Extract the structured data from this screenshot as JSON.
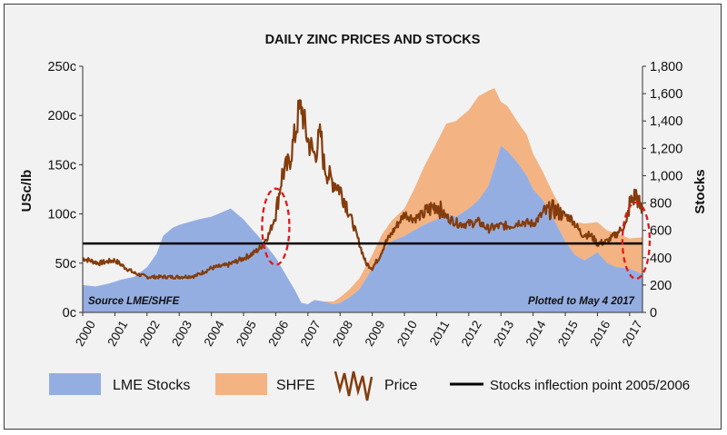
{
  "chart_data": {
    "type": "area",
    "title": "DAILY ZINC PRICES AND STOCKS",
    "ylabel": "USc/lb",
    "y2label": "Stocks",
    "x_ticks": [
      "2000",
      "2001",
      "2002",
      "2003",
      "2004",
      "2005",
      "2006",
      "2007",
      "2008",
      "2009",
      "2010",
      "2011",
      "2012",
      "2013",
      "2014",
      "2015",
      "2016",
      "2017"
    ],
    "y_ticks": [
      "0c",
      "50c",
      "100c",
      "150c",
      "200c",
      "250c"
    ],
    "y2_ticks": [
      "0",
      "200",
      "400",
      "600",
      "800",
      "1,000",
      "1,200",
      "1,400",
      "1,600",
      "1,800"
    ],
    "xlim": [
      2000,
      2017.4
    ],
    "ylim": [
      0,
      250
    ],
    "y2lim": [
      0,
      1800
    ],
    "grid": false,
    "legend_position": "bottom",
    "annotations": {
      "source": "Source LME/SHFE",
      "plotted": "Plotted to May 4 2017"
    },
    "inflection_line": {
      "name": "Stocks inflection point 2005/2006",
      "value": 70,
      "color": "#000000"
    },
    "circles": [
      {
        "x": 2006.0,
        "y": 87
      },
      {
        "x": 2017.2,
        "y": 73
      }
    ],
    "series": [
      {
        "name": "LME Stocks",
        "type": "area",
        "axis": "y2",
        "color": "#95aee2",
        "x": [
          2000.0,
          2000.4,
          2000.8,
          2001.2,
          2001.6,
          2002.0,
          2002.3,
          2002.5,
          2002.8,
          2003.0,
          2003.3,
          2003.6,
          2004.0,
          2004.3,
          2004.6,
          2004.8,
          2005.0,
          2005.3,
          2005.6,
          2006.0,
          2006.3,
          2006.6,
          2006.8,
          2007.0,
          2007.2,
          2007.5,
          2007.8,
          2008.0,
          2008.3,
          2008.6,
          2009.0,
          2009.3,
          2009.6,
          2010.0,
          2010.3,
          2010.6,
          2011.0,
          2011.3,
          2011.6,
          2012.0,
          2012.3,
          2012.6,
          2012.8,
          2013.0,
          2013.2,
          2013.5,
          2013.8,
          2014.0,
          2014.3,
          2014.6,
          2015.0,
          2015.3,
          2015.6,
          2016.0,
          2016.3,
          2016.6,
          2017.0,
          2017.4
        ],
        "values": [
          200,
          190,
          210,
          240,
          260,
          330,
          430,
          560,
          620,
          640,
          660,
          680,
          700,
          730,
          760,
          720,
          680,
          600,
          520,
          400,
          280,
          160,
          70,
          60,
          90,
          80,
          60,
          70,
          110,
          170,
          320,
          450,
          520,
          560,
          600,
          640,
          680,
          720,
          700,
          760,
          820,
          920,
          1060,
          1220,
          1180,
          1100,
          1000,
          900,
          820,
          700,
          520,
          420,
          380,
          440,
          360,
          330,
          320,
          280
        ]
      },
      {
        "name": "SHFE",
        "type": "area",
        "axis": "y2",
        "color": "#f3b382",
        "stacked_on": "LME Stocks",
        "x": [
          2000.0,
          2001.0,
          2002.0,
          2003.0,
          2004.0,
          2005.0,
          2005.6,
          2006.0,
          2006.3,
          2006.6,
          2006.8,
          2007.0,
          2007.2,
          2007.5,
          2007.8,
          2008.0,
          2008.3,
          2008.6,
          2009.0,
          2009.3,
          2009.6,
          2010.0,
          2010.3,
          2010.6,
          2011.0,
          2011.3,
          2011.6,
          2012.0,
          2012.3,
          2012.6,
          2012.8,
          2013.0,
          2013.2,
          2013.5,
          2013.8,
          2014.0,
          2014.3,
          2014.6,
          2015.0,
          2015.3,
          2015.6,
          2016.0,
          2016.3,
          2016.6,
          2017.0,
          2017.4
        ],
        "values": [
          0,
          0,
          0,
          0,
          0,
          0,
          0,
          0,
          0,
          0,
          0,
          0,
          0,
          0,
          20,
          40,
          60,
          80,
          100,
          120,
          150,
          200,
          300,
          420,
          560,
          660,
          700,
          720,
          760,
          700,
          580,
          320,
          330,
          300,
          300,
          260,
          210,
          180,
          190,
          240,
          270,
          220,
          240,
          250,
          220,
          270
        ]
      },
      {
        "name": "Price",
        "type": "line",
        "axis": "y",
        "color": "#843c0c",
        "x": [
          2000.0,
          2000.5,
          2001.0,
          2001.3,
          2001.6,
          2002.0,
          2002.5,
          2003.0,
          2003.5,
          2004.0,
          2004.5,
          2005.0,
          2005.3,
          2005.5,
          2005.8,
          2006.0,
          2006.2,
          2006.4,
          2006.6,
          2006.7,
          2006.8,
          2006.9,
          2007.0,
          2007.2,
          2007.4,
          2007.5,
          2007.7,
          2007.9,
          2008.0,
          2008.2,
          2008.4,
          2008.6,
          2008.8,
          2009.0,
          2009.2,
          2009.4,
          2009.6,
          2009.8,
          2010.0,
          2010.3,
          2010.6,
          2011.0,
          2011.2,
          2011.4,
          2011.7,
          2012.0,
          2012.3,
          2012.6,
          2013.0,
          2013.3,
          2013.6,
          2014.0,
          2014.3,
          2014.6,
          2014.9,
          2015.2,
          2015.5,
          2015.8,
          2016.0,
          2016.3,
          2016.6,
          2016.9,
          2017.0,
          2017.2,
          2017.4
        ],
        "values": [
          55,
          50,
          53,
          46,
          40,
          36,
          36,
          36,
          37,
          45,
          48,
          55,
          60,
          65,
          80,
          100,
          140,
          150,
          180,
          200,
          210,
          190,
          175,
          160,
          180,
          150,
          135,
          130,
          125,
          110,
          90,
          70,
          50,
          45,
          55,
          70,
          80,
          90,
          100,
          95,
          100,
          110,
          100,
          95,
          90,
          90,
          92,
          85,
          88,
          88,
          92,
          90,
          100,
          105,
          100,
          95,
          80,
          78,
          70,
          72,
          80,
          90,
          110,
          120,
          100
        ]
      }
    ]
  }
}
